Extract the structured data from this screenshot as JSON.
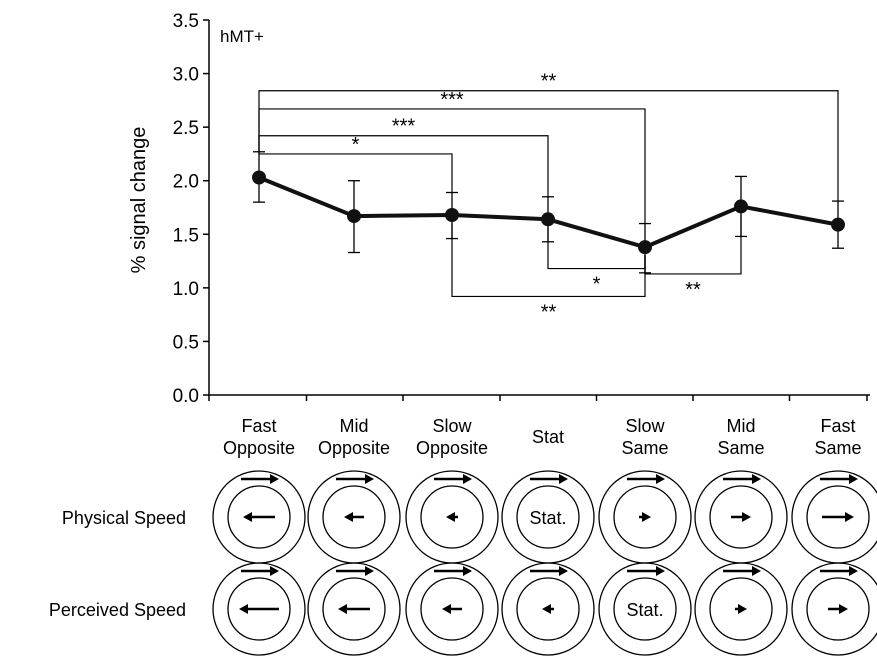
{
  "chart_data": {
    "type": "line",
    "title": "hMT+",
    "ylabel": "% signal change",
    "ylim": [
      0,
      3.5
    ],
    "yticks": [
      "0.0",
      "0.5",
      "1.0",
      "1.5",
      "2.0",
      "2.5",
      "3.0",
      "3.5"
    ],
    "grid": false,
    "categories": [
      [
        "Fast",
        "Opposite"
      ],
      [
        "Mid",
        "Opposite"
      ],
      [
        "Slow",
        "Opposite"
      ],
      [
        "Stat"
      ],
      [
        "Slow",
        "Same"
      ],
      [
        "Mid",
        "Same"
      ],
      [
        "Fast",
        "Same"
      ]
    ],
    "series": [
      {
        "values": [
          2.03,
          1.67,
          1.68,
          1.64,
          1.38,
          1.76,
          1.59
        ],
        "error_upper": [
          2.27,
          2.0,
          1.89,
          1.85,
          1.6,
          2.04,
          1.81
        ],
        "error_lower": [
          1.8,
          1.33,
          1.46,
          1.43,
          1.14,
          1.48,
          1.37
        ],
        "color": "#111111"
      }
    ],
    "significance": [
      {
        "from": 0,
        "to": 6,
        "y": 2.84,
        "label": "**",
        "side": "above"
      },
      {
        "from": 0,
        "to": 4,
        "y": 2.67,
        "label": "***",
        "side": "above"
      },
      {
        "from": 0,
        "to": 3,
        "y": 2.42,
        "label": "***",
        "side": "above"
      },
      {
        "from": 0,
        "to": 2,
        "y": 2.25,
        "label": "*",
        "side": "above"
      },
      {
        "from": 2,
        "to": 4,
        "y": 0.92,
        "label": "**",
        "side": "below"
      },
      {
        "from": 3,
        "to": 4,
        "y": 1.18,
        "label": "*",
        "side": "below"
      },
      {
        "from": 4,
        "to": 5,
        "y": 1.13,
        "label": "**",
        "side": "below"
      }
    ]
  },
  "stimulus_rows": [
    {
      "label": "Physical Speed",
      "cells": [
        {
          "type": "arrow",
          "dir": "left",
          "level": 3
        },
        {
          "type": "arrow",
          "dir": "left",
          "level": 2
        },
        {
          "type": "arrow",
          "dir": "left",
          "level": 1
        },
        {
          "type": "stat",
          "text": "Stat."
        },
        {
          "type": "arrow",
          "dir": "right",
          "level": 1
        },
        {
          "type": "arrow",
          "dir": "right",
          "level": 2
        },
        {
          "type": "arrow",
          "dir": "right",
          "level": 3
        }
      ]
    },
    {
      "label": "Perceived Speed",
      "cells": [
        {
          "type": "arrow",
          "dir": "left",
          "level": 4
        },
        {
          "type": "arrow",
          "dir": "left",
          "level": 3
        },
        {
          "type": "arrow",
          "dir": "left",
          "level": 2
        },
        {
          "type": "arrow",
          "dir": "left",
          "level": 1
        },
        {
          "type": "stat",
          "text": "Stat."
        },
        {
          "type": "arrow",
          "dir": "right",
          "level": 1
        },
        {
          "type": "arrow",
          "dir": "right",
          "level": 2
        }
      ]
    }
  ]
}
